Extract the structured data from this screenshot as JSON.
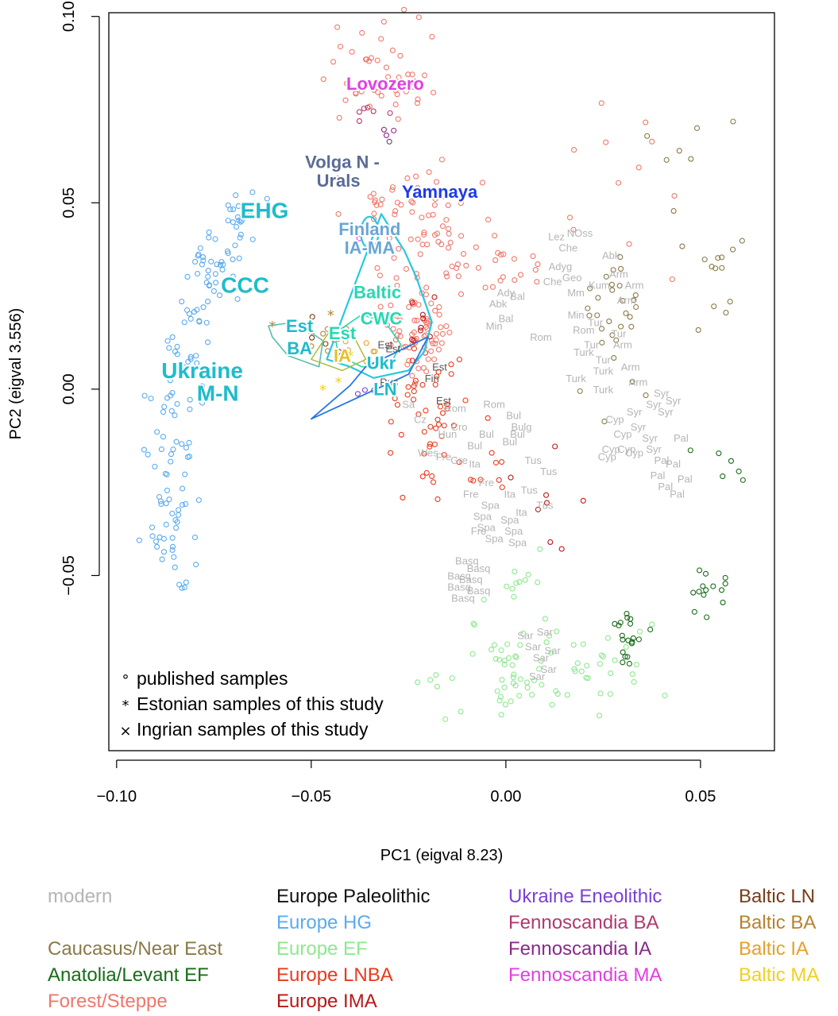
{
  "chart_data": {
    "type": "scatter",
    "title": "",
    "xlabel": "PC1 (eigval 8.23)",
    "ylabel": "PC2 (eigval 3.556)",
    "xlim": [
      -0.102,
      0.069
    ],
    "ylim": [
      -0.097,
      0.101
    ],
    "xticks": [
      {
        "v": -0.1,
        "label": "−0.10"
      },
      {
        "v": -0.05,
        "label": "−0.05"
      },
      {
        "v": 0.0,
        "label": "0.00"
      },
      {
        "v": 0.05,
        "label": "0.05"
      }
    ],
    "yticks": [
      {
        "v": -0.05,
        "label": "−0.05"
      },
      {
        "v": 0.0,
        "label": "0.00"
      },
      {
        "v": 0.05,
        "label": "0.05"
      },
      {
        "v": 0.1,
        "label": "0.10"
      }
    ],
    "grid": false,
    "colors": {
      "modern": "#b5b5b5",
      "europe_hg": "#5aabf0",
      "europe_ef": "#8ee88e",
      "caucasus": "#8a7a48",
      "anatolia": "#1a6b1a",
      "forest_steppe": "#f0776a",
      "europe_lnba": "#e83a1e",
      "europe_ima": "#b81818",
      "ukraine_eneo": "#7a40d8",
      "fennoscandia_ba": "#b03a6e",
      "fennoscandia_ia": "#8a2a8a",
      "fennoscandia_ma": "#e040e0",
      "baltic_ln": "#7a3a18",
      "baltic_ba": "#b8822e",
      "baltic_ia": "#e8a028",
      "baltic_ma": "#f0d020",
      "cyan": "#28c8e0",
      "teal": "#28d8b0",
      "blue": "#2878e0"
    },
    "modern_labels": [
      {
        "t": "Lez",
        "x": 0.013,
        "y": 0.041
      },
      {
        "t": "NOss",
        "x": 0.019,
        "y": 0.042
      },
      {
        "t": "Che",
        "x": 0.016,
        "y": 0.038
      },
      {
        "t": "Abk",
        "x": 0.027,
        "y": 0.036
      },
      {
        "t": "Che",
        "x": 0.012,
        "y": 0.029
      },
      {
        "t": "Geo",
        "x": 0.017,
        "y": 0.03
      },
      {
        "t": "Arm",
        "x": 0.029,
        "y": 0.031
      },
      {
        "t": "Arm",
        "x": 0.033,
        "y": 0.028
      },
      {
        "t": "Adyg",
        "x": 0.014,
        "y": 0.033
      },
      {
        "t": "Kum",
        "x": 0.024,
        "y": 0.028
      },
      {
        "t": "Mm",
        "x": 0.018,
        "y": 0.026
      },
      {
        "t": "Arm",
        "x": 0.031,
        "y": 0.024
      },
      {
        "t": "Ady",
        "x": 0.0,
        "y": 0.026
      },
      {
        "t": "Bal",
        "x": 0.003,
        "y": 0.025
      },
      {
        "t": "Abk",
        "x": -0.002,
        "y": 0.023
      },
      {
        "t": "Min",
        "x": 0.018,
        "y": 0.02
      },
      {
        "t": "Bal",
        "x": 0.0,
        "y": 0.019
      },
      {
        "t": "Min",
        "x": -0.003,
        "y": 0.017
      },
      {
        "t": "Rom",
        "x": 0.009,
        "y": 0.014
      },
      {
        "t": "Rom",
        "x": 0.02,
        "y": 0.016
      },
      {
        "t": "Tur",
        "x": 0.023,
        "y": 0.018
      },
      {
        "t": "Tur",
        "x": 0.029,
        "y": 0.015
      },
      {
        "t": "Arm",
        "x": 0.03,
        "y": 0.012
      },
      {
        "t": "Tur",
        "x": 0.022,
        "y": 0.012
      },
      {
        "t": "Turk",
        "x": 0.02,
        "y": 0.01
      },
      {
        "t": "Tur",
        "x": 0.025,
        "y": 0.008
      },
      {
        "t": "Turk",
        "x": 0.025,
        "y": 0.005
      },
      {
        "t": "Arm",
        "x": 0.032,
        "y": 0.006
      },
      {
        "t": "Turk",
        "x": 0.018,
        "y": 0.003
      },
      {
        "t": "Turk",
        "x": 0.025,
        "y": 0.0
      },
      {
        "t": "Arm",
        "x": 0.034,
        "y": 0.002
      },
      {
        "t": "Syr",
        "x": 0.04,
        "y": -0.001
      },
      {
        "t": "Syr",
        "x": 0.038,
        "y": -0.004
      },
      {
        "t": "Syr",
        "x": 0.043,
        "y": -0.003
      },
      {
        "t": "Syr",
        "x": 0.033,
        "y": -0.006
      },
      {
        "t": "Syr",
        "x": 0.041,
        "y": -0.006
      },
      {
        "t": "Cyp",
        "x": 0.028,
        "y": -0.008
      },
      {
        "t": "Syr",
        "x": 0.034,
        "y": -0.01
      },
      {
        "t": "Cyp",
        "x": 0.03,
        "y": -0.012
      },
      {
        "t": "Syr",
        "x": 0.037,
        "y": -0.013
      },
      {
        "t": "Cyp",
        "x": 0.027,
        "y": -0.016
      },
      {
        "t": "Cyp",
        "x": 0.031,
        "y": -0.016
      },
      {
        "t": "Syr",
        "x": 0.038,
        "y": -0.016
      },
      {
        "t": "Pal",
        "x": 0.045,
        "y": -0.013
      },
      {
        "t": "Cyp",
        "x": 0.026,
        "y": -0.018
      },
      {
        "t": "Cyp",
        "x": 0.033,
        "y": -0.017
      },
      {
        "t": "Pal",
        "x": 0.04,
        "y": -0.019
      },
      {
        "t": "Pal",
        "x": 0.043,
        "y": -0.02
      },
      {
        "t": "Pal",
        "x": 0.039,
        "y": -0.023
      },
      {
        "t": "Pal",
        "x": 0.046,
        "y": -0.024
      },
      {
        "t": "Pal",
        "x": 0.041,
        "y": -0.026
      },
      {
        "t": "Pal",
        "x": 0.044,
        "y": -0.028
      },
      {
        "t": "Est",
        "x": -0.031,
        "y": 0.012
      },
      {
        "t": "Est",
        "x": -0.029,
        "y": 0.011
      },
      {
        "t": "Est",
        "x": -0.017,
        "y": 0.006
      },
      {
        "t": "Fin",
        "x": -0.019,
        "y": 0.003
      },
      {
        "t": "Est",
        "x": -0.016,
        "y": -0.003
      },
      {
        "t": "Rus",
        "x": -0.03,
        "y": 0.002
      },
      {
        "t": "Rom",
        "x": -0.013,
        "y": -0.005
      },
      {
        "t": "Rom",
        "x": -0.003,
        "y": -0.004
      },
      {
        "t": "Bul",
        "x": 0.002,
        "y": -0.007
      },
      {
        "t": "Bulg",
        "x": 0.004,
        "y": -0.01
      },
      {
        "t": "Bul",
        "x": -0.005,
        "y": -0.012
      },
      {
        "t": "Bul",
        "x": 0.001,
        "y": -0.014
      },
      {
        "t": "Bul",
        "x": 0.003,
        "y": -0.012
      },
      {
        "t": "Bul",
        "x": -0.008,
        "y": -0.015
      },
      {
        "t": "Cro",
        "x": -0.012,
        "y": -0.01
      },
      {
        "t": "Hun",
        "x": -0.015,
        "y": -0.012
      },
      {
        "t": "Sa",
        "x": -0.025,
        "y": -0.004
      },
      {
        "t": "Cz",
        "x": -0.022,
        "y": -0.008
      },
      {
        "t": "Wes",
        "x": -0.02,
        "y": -0.017
      },
      {
        "t": "Fre",
        "x": -0.016,
        "y": -0.018
      },
      {
        "t": "Gre",
        "x": -0.012,
        "y": -0.019
      },
      {
        "t": "Ita",
        "x": -0.008,
        "y": -0.02
      },
      {
        "t": "Tus",
        "x": 0.007,
        "y": -0.019
      },
      {
        "t": "Tus",
        "x": 0.011,
        "y": -0.022
      },
      {
        "t": "Fre",
        "x": -0.005,
        "y": -0.025
      },
      {
        "t": "Fre",
        "x": -0.009,
        "y": -0.028
      },
      {
        "t": "Spa",
        "x": -0.004,
        "y": -0.031
      },
      {
        "t": "Tus",
        "x": 0.006,
        "y": -0.027
      },
      {
        "t": "Tus",
        "x": 0.01,
        "y": -0.031
      },
      {
        "t": "Ita",
        "x": 0.001,
        "y": -0.028
      },
      {
        "t": "Spa",
        "x": -0.006,
        "y": -0.034
      },
      {
        "t": "Spa",
        "x": 0.001,
        "y": -0.035
      },
      {
        "t": "Spa",
        "x": -0.005,
        "y": -0.037
      },
      {
        "t": "Spa",
        "x": 0.002,
        "y": -0.038
      },
      {
        "t": "Fre",
        "x": -0.007,
        "y": -0.038
      },
      {
        "t": "Spa",
        "x": -0.003,
        "y": -0.04
      },
      {
        "t": "Spa",
        "x": 0.003,
        "y": -0.041
      },
      {
        "t": "Ita",
        "x": 0.004,
        "y": -0.033
      },
      {
        "t": "Basq",
        "x": -0.01,
        "y": -0.046
      },
      {
        "t": "Basq",
        "x": -0.007,
        "y": -0.048
      },
      {
        "t": "Basq",
        "x": -0.012,
        "y": -0.05
      },
      {
        "t": "Basq",
        "x": -0.009,
        "y": -0.051
      },
      {
        "t": "Basq",
        "x": -0.012,
        "y": -0.053
      },
      {
        "t": "Basq",
        "x": -0.007,
        "y": -0.054
      },
      {
        "t": "Basq",
        "x": -0.011,
        "y": -0.056
      },
      {
        "t": "Sar",
        "x": 0.005,
        "y": -0.066
      },
      {
        "t": "Sar",
        "x": 0.01,
        "y": -0.065
      },
      {
        "t": "Sar",
        "x": 0.007,
        "y": -0.069
      },
      {
        "t": "Sar",
        "x": 0.012,
        "y": -0.07
      },
      {
        "t": "Sar",
        "x": 0.009,
        "y": -0.072
      },
      {
        "t": "Sar",
        "x": 0.011,
        "y": -0.075
      },
      {
        "t": "Sar",
        "x": 0.008,
        "y": -0.077
      }
    ],
    "group_labels": [
      {
        "t": "Lovozero",
        "x": -0.031,
        "y": 0.082,
        "c": "#e040e0",
        "s": 22
      },
      {
        "t": "Volga N -",
        "x": -0.042,
        "y": 0.061,
        "c": "#5a6c96",
        "s": 22
      },
      {
        "t": "Urals",
        "x": -0.043,
        "y": 0.056,
        "c": "#5a6c96",
        "s": 22
      },
      {
        "t": "Yamnaya",
        "x": -0.017,
        "y": 0.053,
        "c": "#1e3ae8",
        "s": 22
      },
      {
        "t": "EHG",
        "x": -0.062,
        "y": 0.048,
        "c": "#1ebccc",
        "s": 28
      },
      {
        "t": "Finland",
        "x": -0.035,
        "y": 0.043,
        "c": "#6aa6d6",
        "s": 22
      },
      {
        "t": "IA-MA",
        "x": -0.035,
        "y": 0.038,
        "c": "#6aa6d6",
        "s": 22
      },
      {
        "t": "CCC",
        "x": -0.067,
        "y": 0.028,
        "c": "#1ebccc",
        "s": 28
      },
      {
        "t": "Baltic",
        "x": -0.033,
        "y": 0.026,
        "c": "#28d8b0",
        "s": 22
      },
      {
        "t": "CWC",
        "x": -0.032,
        "y": 0.019,
        "c": "#28d8b0",
        "s": 22
      },
      {
        "t": "Est",
        "x": -0.053,
        "y": 0.017,
        "c": "#1ebccc",
        "s": 22
      },
      {
        "t": "BA",
        "x": -0.053,
        "y": 0.011,
        "c": "#1ebccc",
        "s": 22
      },
      {
        "t": "Est",
        "x": -0.042,
        "y": 0.015,
        "c": "#28d8b0",
        "s": 22
      },
      {
        "t": "IA",
        "x": -0.042,
        "y": 0.009,
        "c": "#e8c028",
        "s": 22
      },
      {
        "t": "Ukr",
        "x": -0.032,
        "y": 0.007,
        "c": "#1ebccc",
        "s": 22
      },
      {
        "t": "Ukraine",
        "x": -0.078,
        "y": 0.005,
        "c": "#1ebccc",
        "s": 28
      },
      {
        "t": "LN",
        "x": -0.031,
        "y": 0.0,
        "c": "#1ebccc",
        "s": 22
      },
      {
        "t": "M-N",
        "x": -0.074,
        "y": -0.001,
        "c": "#1ebccc",
        "s": 28
      }
    ],
    "plot_annotations": [
      {
        "symbol": "°",
        "text": "published samples"
      },
      {
        "symbol": "*",
        "text": "Estonian samples of this study"
      },
      {
        "symbol": "×",
        "text": "Ingrian samples of this study"
      }
    ],
    "legend_position": "below",
    "legend": [
      [
        {
          "label": "modern",
          "color": "#b5b5b5"
        },
        {
          "label": "",
          "color": "#b5b5b5"
        },
        {
          "label": "Caucasus/Near East",
          "color": "#8a7a48"
        },
        {
          "label": "Anatolia/Levant EF",
          "color": "#1a6b1a"
        },
        {
          "label": "Forest/Steppe",
          "color": "#f0776a"
        }
      ],
      [
        {
          "label": "Europe Paleolithic",
          "color": "#111111"
        },
        {
          "label": "Europe HG",
          "color": "#5aabf0"
        },
        {
          "label": "Europe EF",
          "color": "#8ee88e"
        },
        {
          "label": "Europe LNBA",
          "color": "#e83a1e"
        },
        {
          "label": "Europe IMA",
          "color": "#b81818"
        }
      ],
      [
        {
          "label": "Ukraine Eneolithic",
          "color": "#7a40d8"
        },
        {
          "label": "Fennoscandia BA",
          "color": "#b03a6e"
        },
        {
          "label": "Fennoscandia IA",
          "color": "#8a2a8a"
        },
        {
          "label": "Fennoscandia MA",
          "color": "#e040e0"
        }
      ],
      [
        {
          "label": "Baltic LN",
          "color": "#7a3a18"
        },
        {
          "label": "Baltic BA",
          "color": "#b8822e"
        },
        {
          "label": "Baltic IA",
          "color": "#e8a028"
        },
        {
          "label": "Baltic MA",
          "color": "#f0d020"
        }
      ]
    ]
  }
}
